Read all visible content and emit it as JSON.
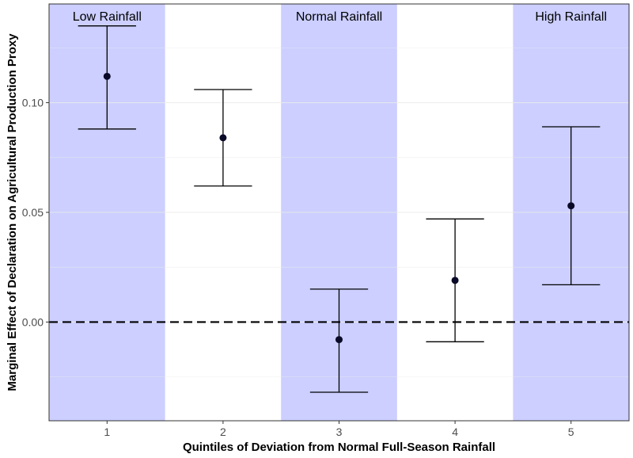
{
  "chart_data": {
    "type": "scatter",
    "subtype": "point-estimates-with-error-bars",
    "xlabel": "Quintiles of Deviation from Normal Full-Season Rainfall",
    "ylabel": "Marginal Effect of Declaration on Agricultural Production Proxy",
    "x": [
      1,
      2,
      3,
      4,
      5
    ],
    "x_tick_labels": [
      "1",
      "2",
      "3",
      "4",
      "5"
    ],
    "y": [
      0.112,
      0.084,
      -0.008,
      0.019,
      0.053
    ],
    "y_lower": [
      0.088,
      0.062,
      -0.032,
      -0.009,
      0.017
    ],
    "y_upper": [
      0.135,
      0.106,
      0.015,
      0.047,
      0.089
    ],
    "y_ticks": [
      0.0,
      0.05,
      0.1
    ],
    "y_tick_labels": [
      "0.00",
      "0.05",
      "0.10"
    ],
    "xlim": [
      0.5,
      5.5
    ],
    "ylim": [
      -0.045,
      0.145
    ],
    "reference_line": {
      "y": 0,
      "style": "dashed"
    },
    "shaded_bands": [
      {
        "x": 1,
        "label": "Low Rainfall"
      },
      {
        "x": 3,
        "label": "Normal Rainfall"
      },
      {
        "x": 5,
        "label": "High Rainfall"
      }
    ],
    "colors": {
      "band": "#cccfff",
      "point": "#0a0a28",
      "errorbar": "#000000",
      "grid": "#ebebeb",
      "border": "#333333"
    },
    "grid": true
  }
}
